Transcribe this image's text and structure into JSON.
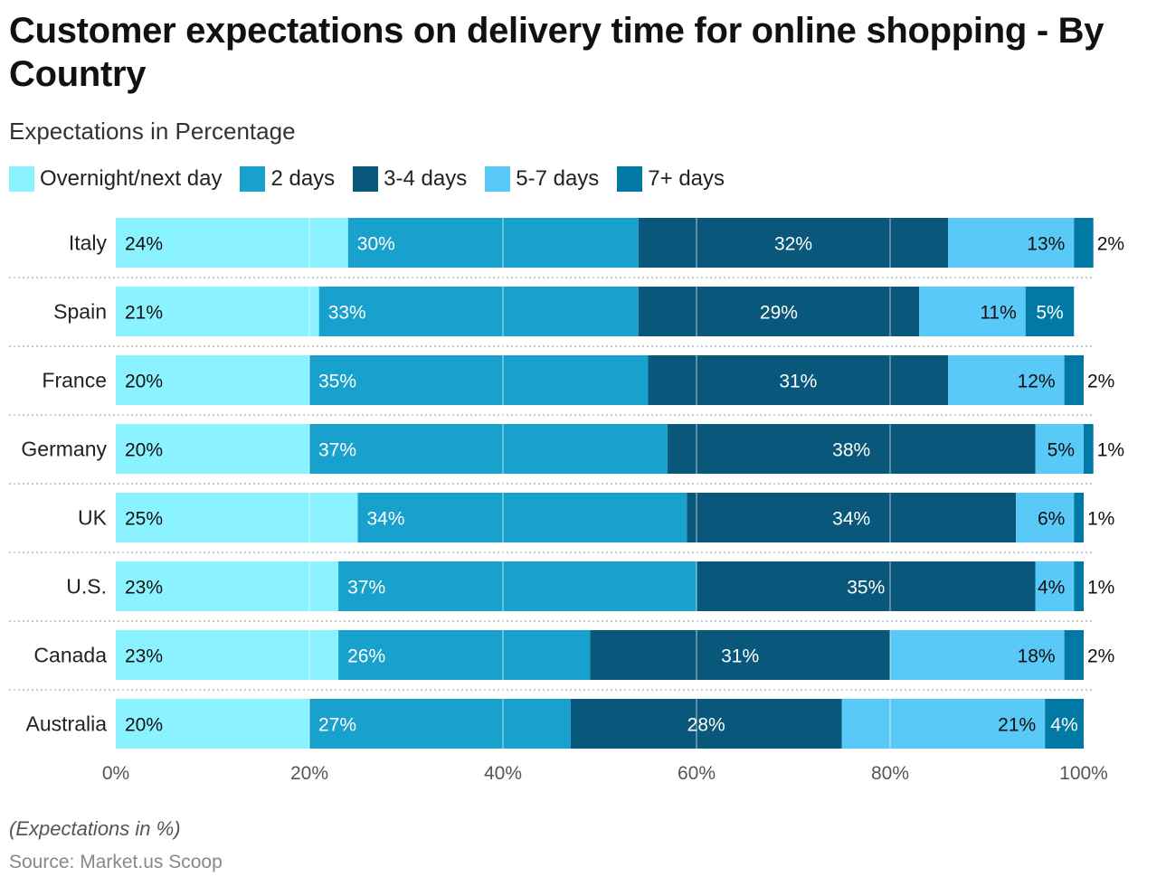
{
  "title": "Customer expectations on delivery time for online shopping - By Country",
  "subtitle": "Expectations in Percentage",
  "note": "(Expectations in %)",
  "source": "Source: Market.us Scoop",
  "chart_data": {
    "type": "bar",
    "orientation": "horizontal",
    "stacked": true,
    "title": "Customer expectations on delivery time for online shopping - By Country",
    "subtitle": "Expectations in Percentage",
    "xlabel": "",
    "ylabel": "",
    "xlim": [
      0,
      100
    ],
    "x_ticks": [
      "0%",
      "20%",
      "40%",
      "60%",
      "80%",
      "100%"
    ],
    "x_tick_values": [
      0,
      20,
      40,
      60,
      80,
      100
    ],
    "grid": true,
    "legend_position": "top-left",
    "categories": [
      "Italy",
      "Spain",
      "France",
      "Germany",
      "UK",
      "U.S.",
      "Canada",
      "Australia"
    ],
    "series": [
      {
        "name": "Overnight/next day",
        "color": "#8af3ff",
        "values": [
          24,
          21,
          20,
          20,
          25,
          23,
          23,
          20
        ]
      },
      {
        "name": "2 days",
        "color": "#18a1cd",
        "values": [
          30,
          33,
          35,
          37,
          34,
          37,
          26,
          27
        ]
      },
      {
        "name": "3-4 days",
        "color": "#09577a",
        "values": [
          32,
          29,
          31,
          38,
          34,
          35,
          31,
          28
        ]
      },
      {
        "name": "5-7 days",
        "color": "#59c9f8",
        "values": [
          13,
          11,
          12,
          5,
          6,
          4,
          18,
          21
        ]
      },
      {
        "name": "7+ days",
        "color": "#0079a5",
        "values": [
          2,
          5,
          2,
          1,
          1,
          1,
          2,
          4
        ]
      }
    ],
    "value_suffix": "%"
  }
}
